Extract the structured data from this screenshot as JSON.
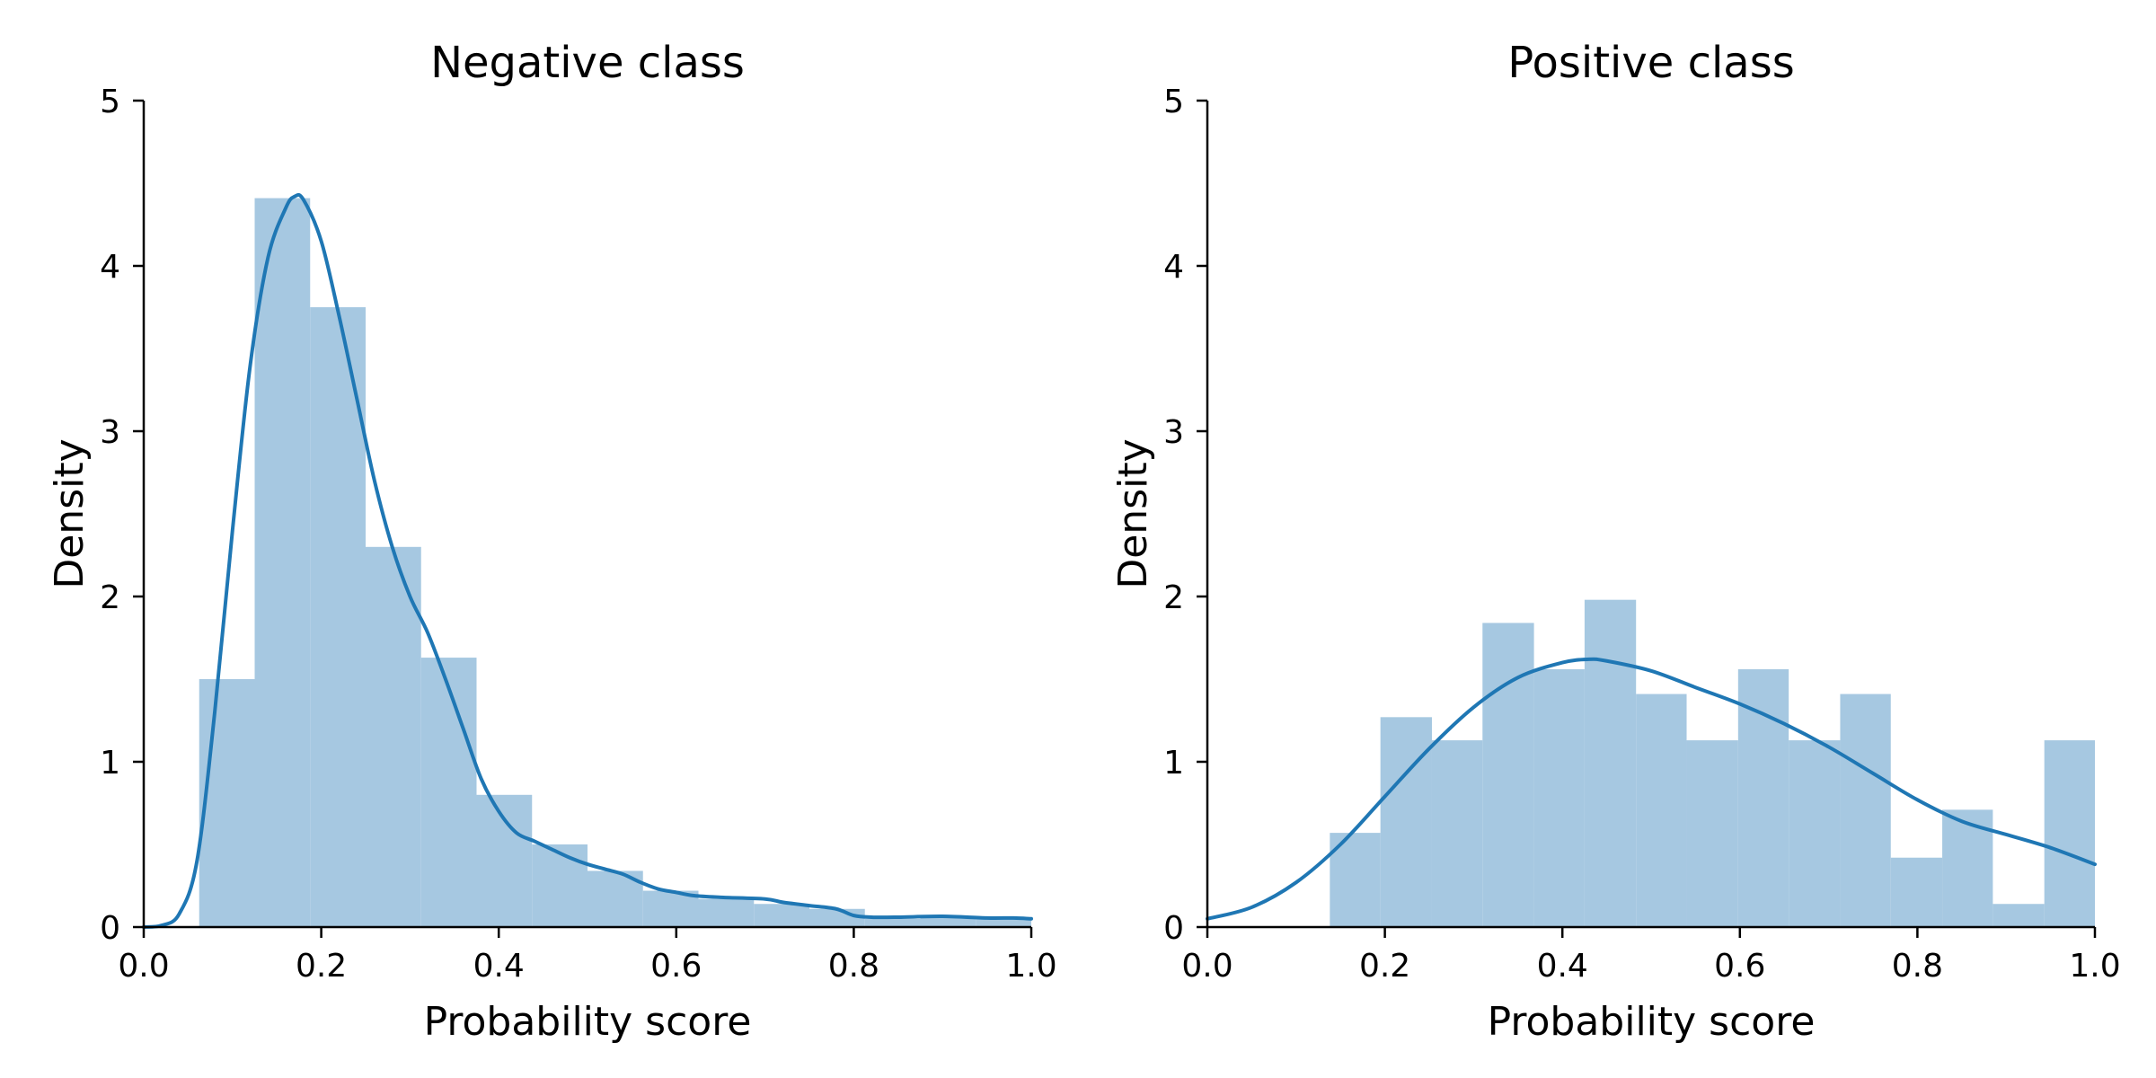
{
  "chart_data": [
    {
      "type": "histogram",
      "title": "Negative class",
      "xlabel": "Probability score",
      "ylabel": "Density",
      "xlim": [
        0.0,
        1.0
      ],
      "ylim": [
        0,
        5
      ],
      "xticks": [
        "0.0",
        "0.2",
        "0.4",
        "0.6",
        "0.8",
        "1.0"
      ],
      "yticks": [
        "0",
        "1",
        "2",
        "3",
        "4",
        "5"
      ],
      "grid": false,
      "bar_color": "#a6c8e1",
      "line_color": "#1f77b4",
      "bins": [
        {
          "x0": 0.0625,
          "x1": 0.125,
          "density": 1.5
        },
        {
          "x0": 0.125,
          "x1": 0.1875,
          "density": 4.41
        },
        {
          "x0": 0.1875,
          "x1": 0.25,
          "density": 3.75
        },
        {
          "x0": 0.25,
          "x1": 0.3125,
          "density": 2.3
        },
        {
          "x0": 0.3125,
          "x1": 0.375,
          "density": 1.63
        },
        {
          "x0": 0.375,
          "x1": 0.4375,
          "density": 0.8
        },
        {
          "x0": 0.4375,
          "x1": 0.5,
          "density": 0.5
        },
        {
          "x0": 0.5,
          "x1": 0.5625,
          "density": 0.34
        },
        {
          "x0": 0.5625,
          "x1": 0.625,
          "density": 0.22
        },
        {
          "x0": 0.625,
          "x1": 0.6875,
          "density": 0.17
        },
        {
          "x0": 0.6875,
          "x1": 0.75,
          "density": 0.14
        },
        {
          "x0": 0.75,
          "x1": 0.8125,
          "density": 0.11
        },
        {
          "x0": 0.8125,
          "x1": 0.875,
          "density": 0.05
        },
        {
          "x0": 0.875,
          "x1": 0.9375,
          "density": 0.06
        },
        {
          "x0": 0.9375,
          "x1": 1.0,
          "density": 0.05
        }
      ],
      "kde": [
        [
          0.0,
          0.0
        ],
        [
          0.02,
          0.01
        ],
        [
          0.04,
          0.08
        ],
        [
          0.06,
          0.4
        ],
        [
          0.08,
          1.3
        ],
        [
          0.1,
          2.4
        ],
        [
          0.12,
          3.4
        ],
        [
          0.14,
          4.05
        ],
        [
          0.16,
          4.35
        ],
        [
          0.17,
          4.42
        ],
        [
          0.18,
          4.4
        ],
        [
          0.2,
          4.15
        ],
        [
          0.22,
          3.7
        ],
        [
          0.24,
          3.2
        ],
        [
          0.26,
          2.7
        ],
        [
          0.28,
          2.3
        ],
        [
          0.3,
          2.0
        ],
        [
          0.32,
          1.78
        ],
        [
          0.34,
          1.5
        ],
        [
          0.36,
          1.2
        ],
        [
          0.38,
          0.9
        ],
        [
          0.4,
          0.7
        ],
        [
          0.42,
          0.57
        ],
        [
          0.44,
          0.52
        ],
        [
          0.46,
          0.47
        ],
        [
          0.48,
          0.42
        ],
        [
          0.5,
          0.38
        ],
        [
          0.52,
          0.35
        ],
        [
          0.54,
          0.32
        ],
        [
          0.56,
          0.27
        ],
        [
          0.58,
          0.23
        ],
        [
          0.6,
          0.21
        ],
        [
          0.62,
          0.19
        ],
        [
          0.65,
          0.18
        ],
        [
          0.7,
          0.17
        ],
        [
          0.72,
          0.15
        ],
        [
          0.75,
          0.13
        ],
        [
          0.78,
          0.11
        ],
        [
          0.8,
          0.07
        ],
        [
          0.82,
          0.06
        ],
        [
          0.85,
          0.06
        ],
        [
          0.9,
          0.065
        ],
        [
          0.95,
          0.055
        ],
        [
          0.98,
          0.055
        ],
        [
          1.0,
          0.05
        ]
      ]
    },
    {
      "type": "histogram",
      "title": "Positive class",
      "xlabel": "Probability score",
      "ylabel": "Density",
      "xlim": [
        0.0,
        1.0
      ],
      "ylim": [
        0,
        5
      ],
      "xticks": [
        "0.0",
        "0.2",
        "0.4",
        "0.6",
        "0.8",
        "1.0"
      ],
      "yticks": [
        "0",
        "1",
        "2",
        "3",
        "4",
        "5"
      ],
      "grid": false,
      "bar_color": "#a6c8e1",
      "line_color": "#1f77b4",
      "bins": [
        {
          "x0": 0.138,
          "x1": 0.195,
          "density": 0.57
        },
        {
          "x0": 0.195,
          "x1": 0.253,
          "density": 1.27
        },
        {
          "x0": 0.253,
          "x1": 0.31,
          "density": 1.13
        },
        {
          "x0": 0.31,
          "x1": 0.368,
          "density": 1.84
        },
        {
          "x0": 0.368,
          "x1": 0.425,
          "density": 1.56
        },
        {
          "x0": 0.425,
          "x1": 0.483,
          "density": 1.98
        },
        {
          "x0": 0.483,
          "x1": 0.54,
          "density": 1.41
        },
        {
          "x0": 0.54,
          "x1": 0.598,
          "density": 1.13
        },
        {
          "x0": 0.598,
          "x1": 0.655,
          "density": 1.56
        },
        {
          "x0": 0.655,
          "x1": 0.713,
          "density": 1.13
        },
        {
          "x0": 0.713,
          "x1": 0.77,
          "density": 1.41
        },
        {
          "x0": 0.77,
          "x1": 0.828,
          "density": 0.42
        },
        {
          "x0": 0.828,
          "x1": 0.885,
          "density": 0.71
        },
        {
          "x0": 0.885,
          "x1": 0.943,
          "density": 0.14
        },
        {
          "x0": 0.943,
          "x1": 1.0,
          "density": 1.13
        }
      ],
      "kde": [
        [
          0.0,
          0.05
        ],
        [
          0.05,
          0.12
        ],
        [
          0.1,
          0.27
        ],
        [
          0.15,
          0.5
        ],
        [
          0.2,
          0.79
        ],
        [
          0.25,
          1.08
        ],
        [
          0.3,
          1.33
        ],
        [
          0.35,
          1.51
        ],
        [
          0.4,
          1.6
        ],
        [
          0.43,
          1.62
        ],
        [
          0.45,
          1.61
        ],
        [
          0.5,
          1.55
        ],
        [
          0.55,
          1.45
        ],
        [
          0.6,
          1.35
        ],
        [
          0.65,
          1.23
        ],
        [
          0.7,
          1.09
        ],
        [
          0.75,
          0.93
        ],
        [
          0.8,
          0.77
        ],
        [
          0.85,
          0.64
        ],
        [
          0.9,
          0.56
        ],
        [
          0.95,
          0.48
        ],
        [
          1.0,
          0.38
        ]
      ]
    }
  ]
}
